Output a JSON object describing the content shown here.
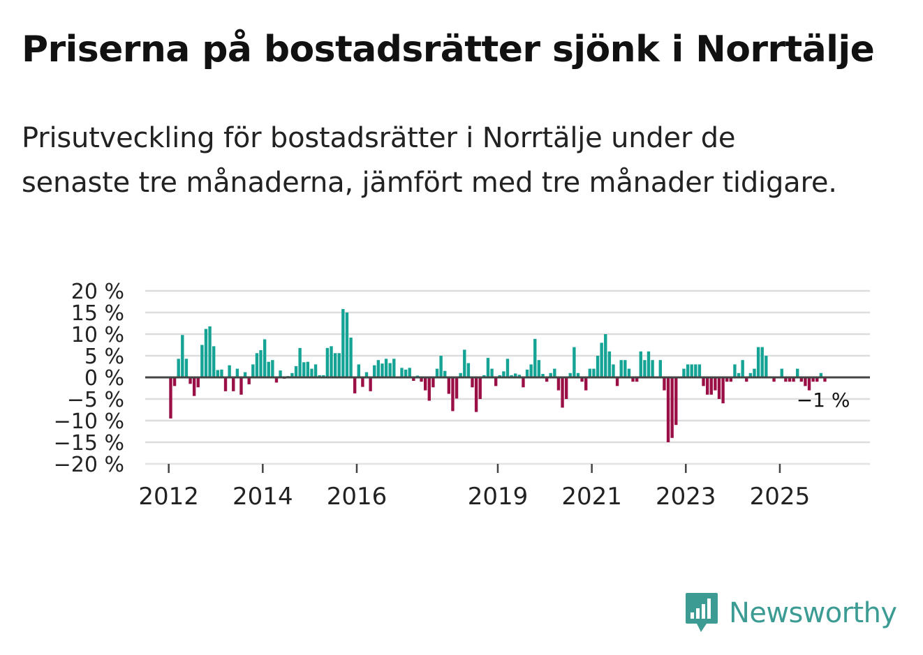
{
  "title": "Priserna på bostadsrätter sjönk i Norrtälje",
  "subtitle": "Prisutveckling för bostadsrätter i Norrtälje under de senaste tre månaderna, jämfört med tre månader tidigare.",
  "brand": "Newsworthy",
  "colors": {
    "positive": "#14a395",
    "negative": "#9a0f45",
    "grid": "#dddddd",
    "zero": "#444444",
    "text": "#111111",
    "brand": "#3c9c94"
  },
  "chart_data": {
    "type": "bar",
    "title": "Priserna på bostadsrätter sjönk i Norrtälje",
    "xlabel": "",
    "ylabel": "",
    "ylim": [
      -20,
      20
    ],
    "yticks": [
      20,
      15,
      10,
      5,
      0,
      -5,
      -10,
      -15,
      -20
    ],
    "ytick_labels": [
      "20 %",
      "15 %",
      "10 %",
      "5 %",
      "0 %",
      "−5 %",
      "−10 %",
      "−15 %",
      "−20 %"
    ],
    "xticks": [
      {
        "label": "2012",
        "year": 2012
      },
      {
        "label": "2014",
        "year": 2014
      },
      {
        "label": "2016",
        "year": 2016
      },
      {
        "label": "2019",
        "year": 2019
      },
      {
        "label": "2021",
        "year": 2021
      },
      {
        "label": "2023",
        "year": 2023
      },
      {
        "label": "2025",
        "year": 2025
      }
    ],
    "x_start": "2011-07",
    "x_end": "2026-12",
    "start": "2012-01",
    "period": "monthly",
    "values": [
      -9.5,
      -2,
      4.3,
      9.8,
      4.3,
      -1.5,
      -4.3,
      -2.3,
      7.5,
      11.2,
      11.8,
      7.2,
      1.7,
      1.8,
      -3.2,
      2.8,
      -3.2,
      2,
      -4,
      1.2,
      -1.6,
      3,
      5.6,
      6.3,
      8.8,
      3.6,
      4,
      -1.2,
      1.6,
      -0.3,
      0.3,
      1,
      2.6,
      6.8,
      3.5,
      3.6,
      2,
      3,
      0.5,
      0.5,
      6.8,
      7.2,
      5.6,
      5.6,
      15.8,
      15,
      9.2,
      -3.7,
      3,
      -2.2,
      1.2,
      -3.2,
      2.8,
      4,
      3.2,
      4.3,
      3.3,
      4.3,
      0.2,
      2.2,
      1.8,
      2.2,
      -0.8,
      0.4,
      -1,
      -3,
      -5.4,
      -2.3,
      2,
      5,
      1.5,
      -3.8,
      -7.8,
      -4.9,
      1,
      6.4,
      3.3,
      -2.3,
      -8,
      -5,
      0.5,
      4.5,
      2,
      -2,
      0.5,
      1.4,
      4.3,
      0.5,
      0.9,
      0.6,
      -2.3,
      1.8,
      3,
      8.9,
      4,
      0.8,
      -1,
      1,
      2,
      -3,
      -7,
      -5,
      1,
      7,
      1,
      -1,
      -3,
      2,
      2,
      5,
      8,
      10,
      6,
      3,
      -2,
      4,
      4,
      2,
      -1,
      -1,
      6,
      4,
      6,
      4,
      0,
      4,
      -3,
      -15,
      -14,
      -11,
      0,
      2,
      3,
      3,
      3,
      3,
      -2,
      -4,
      -4,
      -3,
      -5,
      -6,
      -1,
      -1,
      3,
      1,
      4,
      -1,
      1,
      2,
      7,
      7,
      5,
      0,
      -1,
      0,
      2,
      -1,
      -1,
      -1,
      2,
      -1,
      -2,
      -3,
      -1,
      -1,
      1,
      -1
    ],
    "last_value_label": "−1 %"
  }
}
